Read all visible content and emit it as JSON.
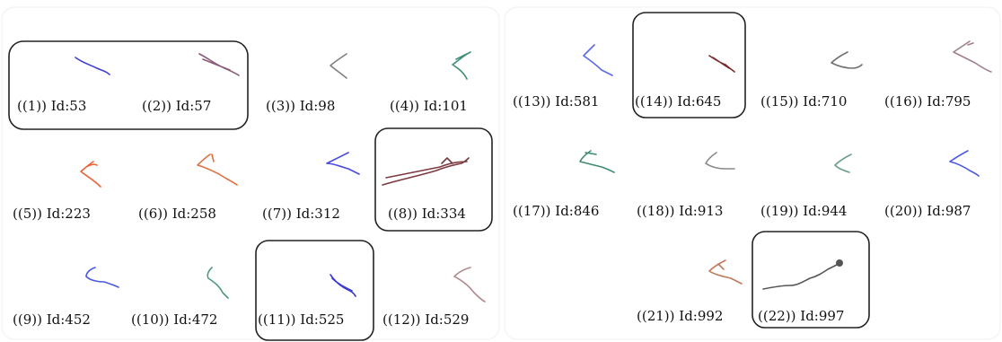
{
  "figure": {
    "items": [
      {
        "label": "((1)) Id:53",
        "color": "#3f3fd6",
        "highlighted": true
      },
      {
        "label": "((2)) Id:57",
        "color": "#8a5a78",
        "highlighted": true
      },
      {
        "label": "((3)) Id:98",
        "color": "#808080",
        "highlighted": false
      },
      {
        "label": "((4)) Id:101",
        "color": "#3f8f7a",
        "highlighted": false
      },
      {
        "label": "((5)) Id:223",
        "color": "#e8653a",
        "highlighted": false
      },
      {
        "label": "((6)) Id:258",
        "color": "#e07040",
        "highlighted": false
      },
      {
        "label": "((7)) Id:312",
        "color": "#4a4ae0",
        "highlighted": false
      },
      {
        "label": "((8)) Id:334",
        "color": "#7a3a40",
        "highlighted": true
      },
      {
        "label": "((9)) Id:452",
        "color": "#4a5ae0",
        "highlighted": false
      },
      {
        "label": "((10)) Id:472",
        "color": "#4f9a80",
        "highlighted": false
      },
      {
        "label": "((11)) Id:525",
        "color": "#3a3ad0",
        "highlighted": true
      },
      {
        "label": "((12)) Id:529",
        "color": "#b08a90",
        "highlighted": false
      },
      {
        "label": "((13)) Id:581",
        "color": "#5a6ae6",
        "highlighted": false
      },
      {
        "label": "((14)) Id:645",
        "color": "#7a2a2a",
        "highlighted": true
      },
      {
        "label": "((15)) Id:710",
        "color": "#707070",
        "highlighted": false
      },
      {
        "label": "((16)) Id:795",
        "color": "#a08090",
        "highlighted": false
      },
      {
        "label": "((17)) Id:846",
        "color": "#3f8a70",
        "highlighted": false
      },
      {
        "label": "((18)) Id:913",
        "color": "#888888",
        "highlighted": false
      },
      {
        "label": "((19)) Id:944",
        "color": "#6aa090",
        "highlighted": false
      },
      {
        "label": "((20)) Id:987",
        "color": "#4a5ae6",
        "highlighted": false
      },
      {
        "label": "((21)) Id:992",
        "color": "#c07a5a",
        "highlighted": false
      },
      {
        "label": "((22)) Id:997",
        "color": "#555555",
        "highlighted": true
      }
    ]
  }
}
